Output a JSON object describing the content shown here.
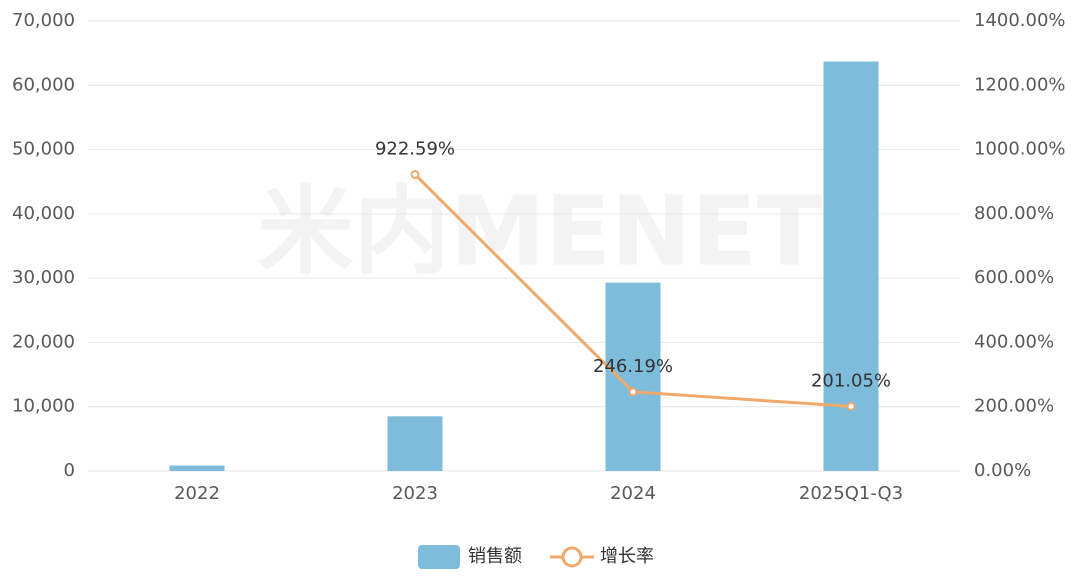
{
  "chart_data": {
    "type": "bar-line",
    "watermark": "米内MENET",
    "categories": [
      "2022",
      "2023",
      "2024",
      "2025Q1-Q3"
    ],
    "series": [
      {
        "name": "销售额",
        "type": "bar",
        "color": "#7dbddb",
        "values": [
          850,
          8500,
          29300,
          63700
        ]
      },
      {
        "name": "增长率",
        "type": "line",
        "axis": "y2",
        "color": "#f0a96b",
        "values": [
          null,
          922.59,
          246.19,
          201.05
        ],
        "value_labels": [
          null,
          "922.59%",
          "246.19%",
          "201.05%"
        ]
      }
    ],
    "ylim": [
      0,
      70000
    ],
    "yticks": [
      0,
      {
        "value": 10000,
        "label": "10,000"
      },
      {
        "value": 20000,
        "label": "20,000"
      },
      {
        "value": 30000,
        "label": "30,000"
      },
      {
        "value": 40000,
        "label": "40,000"
      },
      {
        "value": 50000,
        "label": "50,000"
      },
      {
        "value": 60000,
        "label": "60,000"
      },
      {
        "value": 70000,
        "label": "70,000"
      }
    ],
    "y2lim": [
      0,
      1400
    ],
    "y2ticks": [
      {
        "value": 0,
        "label": "0.00%"
      },
      {
        "value": 200,
        "label": "200.00%"
      },
      {
        "value": 400,
        "label": "400.00%"
      },
      {
        "value": 600,
        "label": "600.00%"
      },
      {
        "value": 800,
        "label": "800.00%"
      },
      {
        "value": 1000,
        "label": "1000.00%"
      },
      {
        "value": 1200,
        "label": "1200.00%"
      },
      {
        "value": 1400,
        "label": "1400.00%"
      }
    ],
    "grid": true,
    "legend": "bottom"
  }
}
